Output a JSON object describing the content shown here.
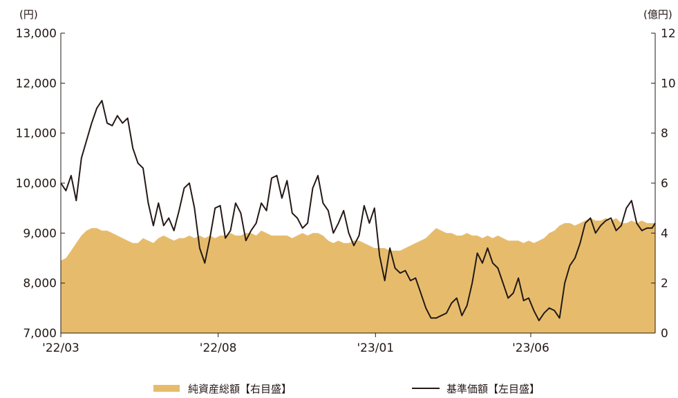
{
  "chart_data": {
    "type": "line",
    "title": "",
    "left_axis": {
      "unit_label": "(円)",
      "ylim": [
        7000,
        13000
      ],
      "ticks": [
        7000,
        8000,
        9000,
        10000,
        11000,
        12000,
        13000
      ],
      "tick_labels": [
        "7,000",
        "8,000",
        "9,000",
        "10,000",
        "11,000",
        "12,000",
        "13,000"
      ]
    },
    "right_axis": {
      "unit_label": "(億円)",
      "ylim": [
        0,
        12
      ],
      "ticks": [
        0,
        2,
        4,
        6,
        8,
        10,
        12
      ],
      "tick_labels": [
        "0",
        "2",
        "4",
        "6",
        "8",
        "10",
        "12"
      ]
    },
    "x_axis": {
      "range": [
        "2022-03-01",
        "2023-09-30"
      ],
      "ticks": [
        "2022-03-01",
        "2022-08-01",
        "2023-01-01",
        "2023-06-01"
      ],
      "tick_labels": [
        "'22/03",
        "'22/08",
        "'23/01",
        "'23/06"
      ]
    },
    "grid": false,
    "legend_position": "bottom",
    "series": [
      {
        "name": "純資産総額【右目盛】",
        "type": "area",
        "axis": "right",
        "color": "#E6BC6C",
        "x": [
          "2022-03-01",
          "2022-03-06",
          "2022-03-11",
          "2022-03-16",
          "2022-03-21",
          "2022-03-26",
          "2022-03-31",
          "2022-04-05",
          "2022-04-10",
          "2022-04-15",
          "2022-04-20",
          "2022-04-25",
          "2022-04-30",
          "2022-05-05",
          "2022-05-10",
          "2022-05-15",
          "2022-05-20",
          "2022-05-25",
          "2022-05-30",
          "2022-06-04",
          "2022-06-09",
          "2022-06-14",
          "2022-06-19",
          "2022-06-24",
          "2022-06-29",
          "2022-07-04",
          "2022-07-09",
          "2022-07-14",
          "2022-07-19",
          "2022-07-24",
          "2022-07-29",
          "2022-08-03",
          "2022-08-08",
          "2022-08-13",
          "2022-08-18",
          "2022-08-23",
          "2022-08-28",
          "2022-09-02",
          "2022-09-07",
          "2022-09-12",
          "2022-09-17",
          "2022-09-22",
          "2022-09-27",
          "2022-10-02",
          "2022-10-07",
          "2022-10-12",
          "2022-10-17",
          "2022-10-22",
          "2022-10-27",
          "2022-11-01",
          "2022-11-06",
          "2022-11-11",
          "2022-11-16",
          "2022-11-21",
          "2022-11-26",
          "2022-12-01",
          "2022-12-06",
          "2022-12-11",
          "2022-12-16",
          "2022-12-21",
          "2022-12-26",
          "2022-12-31",
          "2023-01-05",
          "2023-01-10",
          "2023-01-15",
          "2023-01-20",
          "2023-01-25",
          "2023-01-30",
          "2023-02-04",
          "2023-02-09",
          "2023-02-14",
          "2023-02-19",
          "2023-02-24",
          "2023-03-01",
          "2023-03-06",
          "2023-03-11",
          "2023-03-16",
          "2023-03-21",
          "2023-03-26",
          "2023-03-31",
          "2023-04-05",
          "2023-04-10",
          "2023-04-15",
          "2023-04-20",
          "2023-04-25",
          "2023-04-30",
          "2023-05-05",
          "2023-05-10",
          "2023-05-15",
          "2023-05-20",
          "2023-05-25",
          "2023-05-30",
          "2023-06-04",
          "2023-06-09",
          "2023-06-14",
          "2023-06-19",
          "2023-06-24",
          "2023-06-29",
          "2023-07-04",
          "2023-07-09",
          "2023-07-14",
          "2023-07-19",
          "2023-07-24",
          "2023-07-29",
          "2023-08-03",
          "2023-08-08",
          "2023-08-13",
          "2023-08-18",
          "2023-08-23",
          "2023-08-28",
          "2023-09-02",
          "2023-09-07",
          "2023-09-12",
          "2023-09-17",
          "2023-09-22",
          "2023-09-27",
          "2023-09-30"
        ],
        "values": [
          2.9,
          3.0,
          3.3,
          3.6,
          3.9,
          4.1,
          4.2,
          4.2,
          4.1,
          4.1,
          4.0,
          3.9,
          3.8,
          3.7,
          3.6,
          3.6,
          3.8,
          3.7,
          3.6,
          3.8,
          3.9,
          3.8,
          3.7,
          3.8,
          3.8,
          3.9,
          3.8,
          3.9,
          3.8,
          3.9,
          3.8,
          3.9,
          3.9,
          4.0,
          3.9,
          3.9,
          4.0,
          4.0,
          3.9,
          4.1,
          4.0,
          3.9,
          3.9,
          3.9,
          3.9,
          3.8,
          3.9,
          4.0,
          3.9,
          4.0,
          4.0,
          3.9,
          3.7,
          3.6,
          3.7,
          3.6,
          3.6,
          3.7,
          3.7,
          3.6,
          3.5,
          3.4,
          3.4,
          3.4,
          3.3,
          3.3,
          3.3,
          3.4,
          3.5,
          3.6,
          3.7,
          3.8,
          4.0,
          4.2,
          4.1,
          4.0,
          4.0,
          3.9,
          3.9,
          4.0,
          3.9,
          3.9,
          3.8,
          3.9,
          3.8,
          3.9,
          3.8,
          3.7,
          3.7,
          3.7,
          3.6,
          3.7,
          3.6,
          3.7,
          3.8,
          4.0,
          4.1,
          4.3,
          4.4,
          4.4,
          4.3,
          4.4,
          4.5,
          4.6,
          4.5,
          4.5,
          4.6,
          4.5,
          4.6,
          4.4,
          4.4,
          4.5,
          4.4,
          4.5,
          4.4,
          4.4,
          4.4
        ]
      },
      {
        "name": "基準価額【左目盛】",
        "type": "line",
        "axis": "left",
        "color": "#231815",
        "x": [
          "2022-03-01",
          "2022-03-06",
          "2022-03-11",
          "2022-03-16",
          "2022-03-21",
          "2022-03-26",
          "2022-03-31",
          "2022-04-05",
          "2022-04-10",
          "2022-04-15",
          "2022-04-20",
          "2022-04-25",
          "2022-04-30",
          "2022-05-05",
          "2022-05-10",
          "2022-05-15",
          "2022-05-20",
          "2022-05-25",
          "2022-05-30",
          "2022-06-04",
          "2022-06-09",
          "2022-06-14",
          "2022-06-19",
          "2022-06-24",
          "2022-06-29",
          "2022-07-04",
          "2022-07-09",
          "2022-07-14",
          "2022-07-19",
          "2022-07-24",
          "2022-07-29",
          "2022-08-03",
          "2022-08-08",
          "2022-08-13",
          "2022-08-18",
          "2022-08-23",
          "2022-08-28",
          "2022-09-02",
          "2022-09-07",
          "2022-09-12",
          "2022-09-17",
          "2022-09-22",
          "2022-09-27",
          "2022-10-02",
          "2022-10-07",
          "2022-10-12",
          "2022-10-17",
          "2022-10-22",
          "2022-10-27",
          "2022-11-01",
          "2022-11-06",
          "2022-11-11",
          "2022-11-16",
          "2022-11-21",
          "2022-11-26",
          "2022-12-01",
          "2022-12-06",
          "2022-12-11",
          "2022-12-16",
          "2022-12-21",
          "2022-12-26",
          "2022-12-31",
          "2023-01-05",
          "2023-01-10",
          "2023-01-15",
          "2023-01-20",
          "2023-01-25",
          "2023-01-30",
          "2023-02-04",
          "2023-02-09",
          "2023-02-14",
          "2023-02-19",
          "2023-02-24",
          "2023-03-01",
          "2023-03-06",
          "2023-03-11",
          "2023-03-16",
          "2023-03-21",
          "2023-03-26",
          "2023-03-31",
          "2023-04-05",
          "2023-04-10",
          "2023-04-15",
          "2023-04-20",
          "2023-04-25",
          "2023-04-30",
          "2023-05-05",
          "2023-05-10",
          "2023-05-15",
          "2023-05-20",
          "2023-05-25",
          "2023-05-30",
          "2023-06-04",
          "2023-06-09",
          "2023-06-14",
          "2023-06-19",
          "2023-06-24",
          "2023-06-29",
          "2023-07-04",
          "2023-07-09",
          "2023-07-14",
          "2023-07-19",
          "2023-07-24",
          "2023-07-29",
          "2023-08-03",
          "2023-08-08",
          "2023-08-13",
          "2023-08-18",
          "2023-08-23",
          "2023-08-28",
          "2023-09-02",
          "2023-09-07",
          "2023-09-12",
          "2023-09-17",
          "2023-09-22",
          "2023-09-27",
          "2023-09-30"
        ],
        "values": [
          10000,
          9850,
          10150,
          9650,
          10500,
          10850,
          11200,
          11500,
          11650,
          11200,
          11150,
          11350,
          11200,
          11300,
          10700,
          10400,
          10300,
          9600,
          9150,
          9600,
          9150,
          9300,
          9050,
          9450,
          9900,
          10000,
          9500,
          8700,
          8400,
          8900,
          9500,
          9550,
          8900,
          9050,
          9600,
          9400,
          8850,
          9050,
          9200,
          9600,
          9450,
          10100,
          10150,
          9700,
          10050,
          9400,
          9300,
          9100,
          9200,
          9900,
          10150,
          9600,
          9450,
          9000,
          9200,
          9450,
          9000,
          8750,
          8950,
          9550,
          9200,
          9500,
          8550,
          8050,
          8700,
          8300,
          8200,
          8250,
          8050,
          8100,
          7800,
          7500,
          7300,
          7300,
          7350,
          7400,
          7600,
          7700,
          7350,
          7550,
          8000,
          8600,
          8400,
          8700,
          8400,
          8300,
          8000,
          7700,
          7800,
          8100,
          7650,
          7700,
          7450,
          7250,
          7400,
          7500,
          7450,
          7300,
          8000,
          8350,
          8500,
          8800,
          9200,
          9300,
          9000,
          9150,
          9250,
          9300,
          9050,
          9150,
          9500,
          9650,
          9200,
          9050,
          9100,
          9100,
          9200
        ]
      }
    ]
  }
}
